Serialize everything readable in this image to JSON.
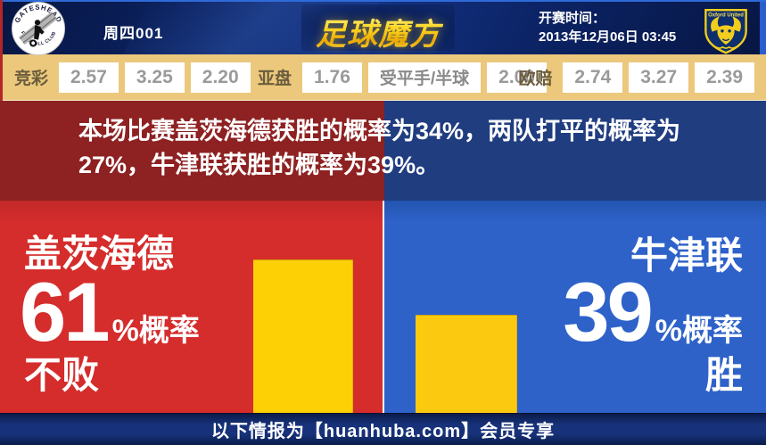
{
  "header": {
    "match_code": "周四001",
    "brand": "足球魔方",
    "kickoff_label": "开赛时间：",
    "kickoff_time": "2013年12月06日 03:45",
    "home_crest": {
      "name": "gateshead-crest",
      "ring_top": "GATESHEAD",
      "ring_bottom": "FOOTBALL CLUB"
    },
    "away_crest": {
      "name": "oxford-united-crest",
      "label": "Oxford United"
    }
  },
  "odds": {
    "jingcai": {
      "label": "竞彩",
      "values": [
        "2.57",
        "3.25",
        "2.20"
      ]
    },
    "yapan": {
      "label": "亚盘",
      "home": "1.76",
      "handicap": "受平手/半球",
      "away": "2.00"
    },
    "oupei": {
      "label": "欧赔",
      "values": [
        "2.74",
        "3.27",
        "2.39"
      ]
    }
  },
  "summary": {
    "text": "本场比赛盖茨海德获胜的概率为34%，两队打平的概率为27%，牛津联获胜的概率为39%。"
  },
  "panels": {
    "home": {
      "team": "盖茨海德",
      "percent": "61",
      "percent_suffix": "%概率",
      "outcome": "不败",
      "bar_percent": 61
    },
    "away": {
      "team": "牛津联",
      "percent": "39",
      "percent_suffix": "%概率",
      "outcome": "胜",
      "bar_percent": 39
    }
  },
  "footer": {
    "text": "以下情报为【huanhuba.com】会员专享"
  },
  "colors": {
    "home_red": "#d52c2c",
    "away_blue": "#2e62c9",
    "banner_red": "#8e2121",
    "banner_blue": "#203d80",
    "bar_yellow": "#fcd005",
    "odds_bg": "#ecc87c",
    "header_navy": "#0b2262",
    "brand_gold": "#ffd927"
  }
}
